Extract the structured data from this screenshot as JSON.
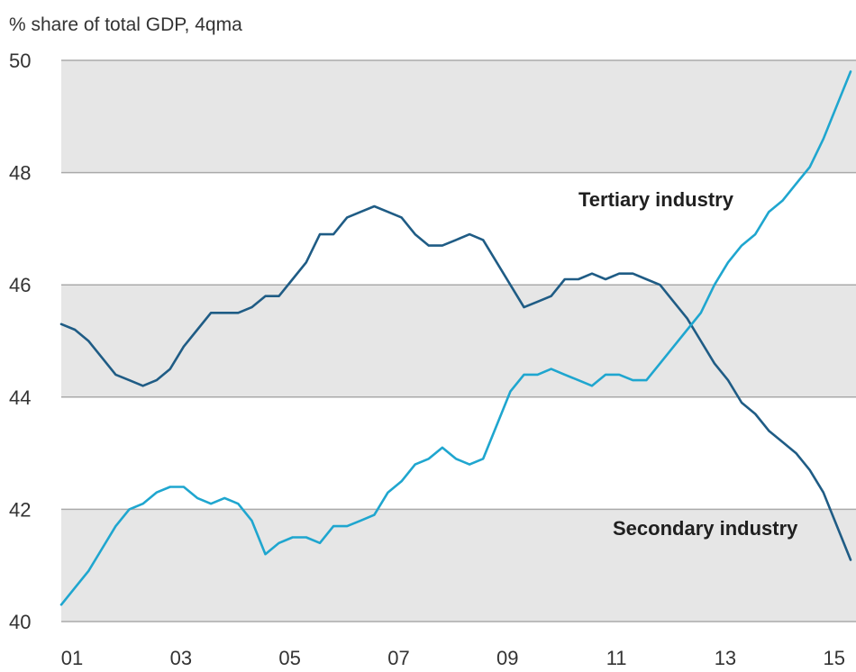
{
  "chart_data": {
    "type": "line",
    "title": "",
    "ylabel": "% share of total GDP, 4qma",
    "xlabel": "",
    "ylim": [
      40,
      50
    ],
    "xlim": [
      2001,
      2015.6
    ],
    "yticks": [
      "40",
      "42",
      "44",
      "46",
      "48",
      "50"
    ],
    "xticks": [
      "01",
      "03",
      "05",
      "07",
      "09",
      "11",
      "13",
      "15"
    ],
    "grid": true,
    "background": "alternating grey bands",
    "series": [
      {
        "name": "Tertiary industry",
        "color": "#1f5c85",
        "x": [
          2001.0,
          2001.25,
          2001.5,
          2001.75,
          2002.0,
          2002.25,
          2002.5,
          2002.75,
          2003.0,
          2003.25,
          2003.5,
          2003.75,
          2004.0,
          2004.25,
          2004.5,
          2004.75,
          2005.0,
          2005.25,
          2005.5,
          2005.75,
          2006.0,
          2006.25,
          2006.5,
          2006.75,
          2007.0,
          2007.25,
          2007.5,
          2007.75,
          2008.0,
          2008.25,
          2008.5,
          2008.75,
          2009.0,
          2009.25,
          2009.5,
          2009.75,
          2010.0,
          2010.25,
          2010.5,
          2010.75,
          2011.0,
          2011.25,
          2011.5,
          2011.75,
          2012.0,
          2012.25,
          2012.5,
          2012.75,
          2013.0,
          2013.25,
          2013.5,
          2013.75,
          2014.0,
          2014.25,
          2014.5,
          2014.75,
          2015.0,
          2015.25,
          2015.5
        ],
        "y": [
          45.3,
          45.2,
          45.0,
          44.7,
          44.4,
          44.3,
          44.2,
          44.3,
          44.5,
          44.9,
          45.2,
          45.5,
          45.5,
          45.5,
          45.6,
          45.8,
          45.8,
          46.1,
          46.4,
          46.9,
          46.9,
          47.2,
          47.3,
          47.4,
          47.3,
          47.2,
          46.9,
          46.7,
          46.7,
          46.8,
          46.9,
          46.8,
          46.4,
          46.0,
          45.6,
          45.7,
          45.8,
          46.1,
          46.1,
          46.2,
          46.1,
          46.2,
          46.2,
          46.1,
          46.0,
          45.7,
          45.4,
          45.0,
          44.6,
          44.3,
          43.9,
          43.7,
          43.4,
          43.2,
          43.0,
          42.7,
          42.3,
          41.7,
          41.1
        ]
      },
      {
        "name": "Secondary industry",
        "color": "#1fa6cf",
        "x": [
          2001.0,
          2001.25,
          2001.5,
          2001.75,
          2002.0,
          2002.25,
          2002.5,
          2002.75,
          2003.0,
          2003.25,
          2003.5,
          2003.75,
          2004.0,
          2004.25,
          2004.5,
          2004.75,
          2005.0,
          2005.25,
          2005.5,
          2005.75,
          2006.0,
          2006.25,
          2006.5,
          2006.75,
          2007.0,
          2007.25,
          2007.5,
          2007.75,
          2008.0,
          2008.25,
          2008.5,
          2008.75,
          2009.0,
          2009.25,
          2009.5,
          2009.75,
          2010.0,
          2010.25,
          2010.5,
          2010.75,
          2011.0,
          2011.25,
          2011.5,
          2011.75,
          2012.0,
          2012.25,
          2012.5,
          2012.75,
          2013.0,
          2013.25,
          2013.5,
          2013.75,
          2014.0,
          2014.25,
          2014.5,
          2014.75,
          2015.0,
          2015.25,
          2015.5
        ],
        "y": [
          40.3,
          40.6,
          40.9,
          41.3,
          41.7,
          42.0,
          42.1,
          42.3,
          42.4,
          42.4,
          42.2,
          42.1,
          42.2,
          42.1,
          41.8,
          41.2,
          41.4,
          41.5,
          41.5,
          41.4,
          41.7,
          41.7,
          41.8,
          41.9,
          42.3,
          42.5,
          42.8,
          42.9,
          43.1,
          42.9,
          42.8,
          42.9,
          43.5,
          44.1,
          44.4,
          44.4,
          44.5,
          44.4,
          44.3,
          44.2,
          44.4,
          44.4,
          44.3,
          44.3,
          44.6,
          44.9,
          45.2,
          45.5,
          46.0,
          46.4,
          46.7,
          46.9,
          47.3,
          47.5,
          47.8,
          48.1,
          48.6,
          49.2,
          49.8
        ]
      }
    ],
    "annotations": [
      {
        "text": "Tertiary industry",
        "series": "Tertiary industry"
      },
      {
        "text": "Secondary industry",
        "series": "Secondary industry"
      }
    ],
    "band_color": "#e6e6e6",
    "gridline_color": "#aaaaaa"
  }
}
